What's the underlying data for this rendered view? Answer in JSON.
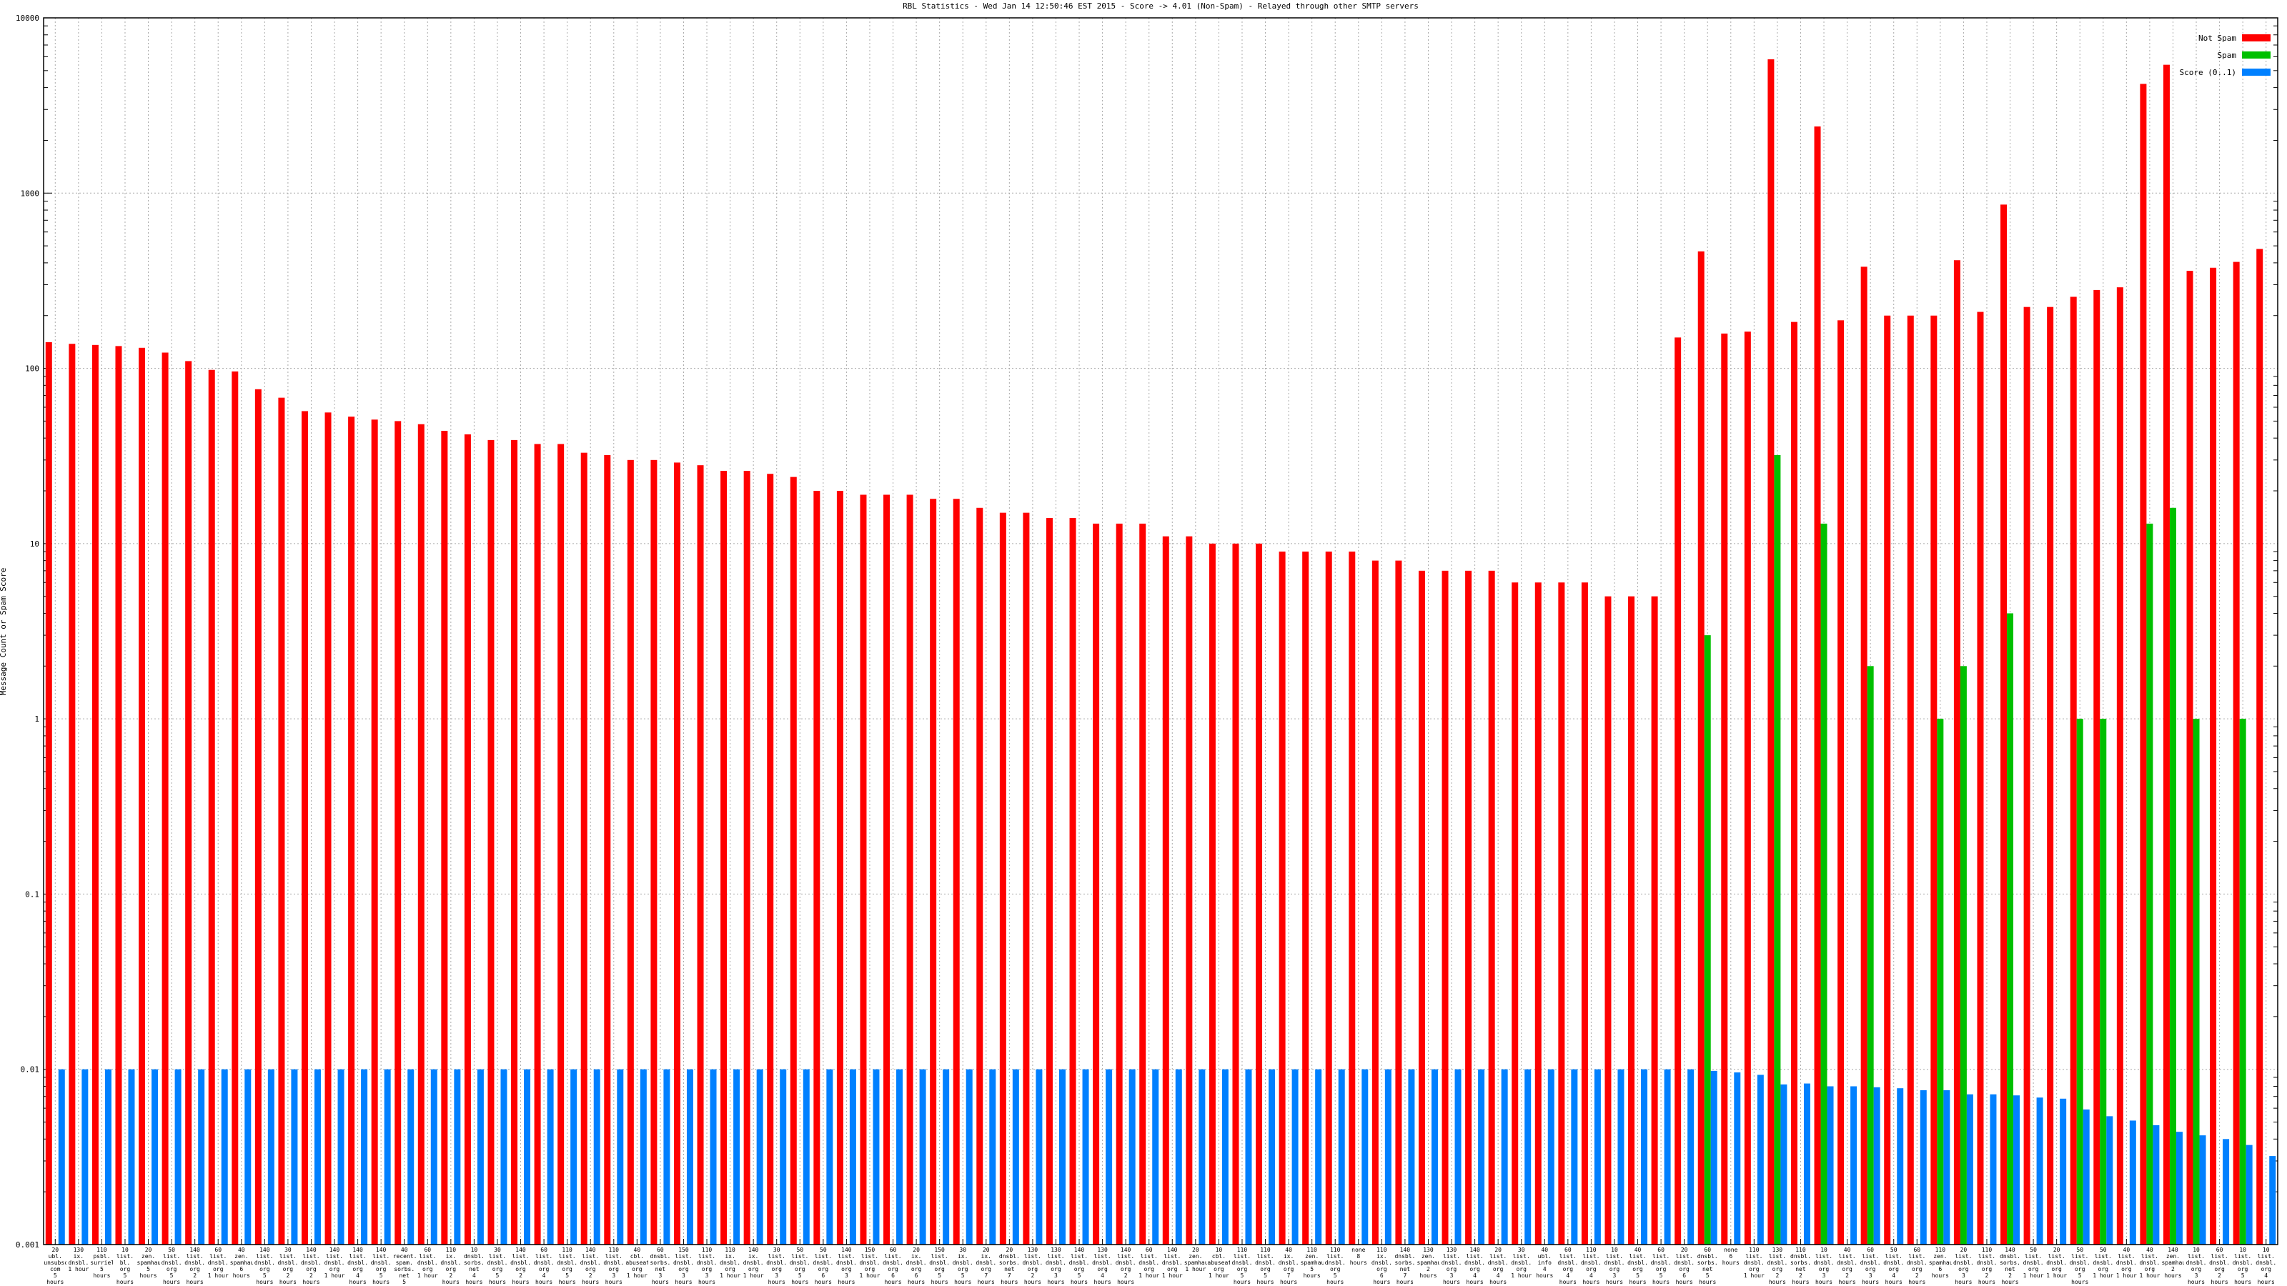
{
  "chart_data": {
    "type": "bar",
    "log_scale": true,
    "grid": true,
    "legend_position": "upper right",
    "title": "RBL Statistics - Wed Jan 14 12:50:46 EST 2015 - Score -> 4.01 (Non-Spam) - Relayed through other SMTP servers",
    "y_label": "Message Count or Spam Score",
    "ylim": [
      0.001,
      10000
    ],
    "yticks": [
      0.001,
      0.01,
      0.1,
      1,
      10,
      100,
      1000,
      10000
    ],
    "categories": [
      "20\nubl.\nunsubscore.\ncom\n5 hours",
      "130\nix.\ndnsbl.\n1 hour",
      "110\npsbl.\nsurriel.\n5 hours",
      "10\nlist.\nbl.\norg\n5 hours",
      "20\nzen.\nspamhaus.\n5 hours",
      "50\nlist.\ndnsbl.\norg\n5 hours",
      "140\nlist.\ndnsbl.\norg\n2 hours",
      "60\nlist.\ndnsbl.\norg\n1 hour",
      "40\nzen.\nspamhaus.\n6 hours",
      "140\nlist.\ndnsbl.\norg\n5 hours",
      "30\nlist.\ndnsbl.\norg\n2 hours",
      "140\nlist.\ndnsbl.\norg\n2 hours",
      "140\nlist.\ndnsbl.\norg\n1 hour",
      "140\nlist.\ndnsbl.\norg\n4 hours",
      "140\nlist.\ndnsbl.\norg\n5 hours",
      "40\nrecent.\nspam.\nsorbs.\nnet\n5 hours",
      "60\nlist.\ndnsbl.\norg\n1 hour",
      "110\nix.\ndnsbl.\norg\n2 hours",
      "10\ndnsbl.\nsorbs.\nnet\n4 hours",
      "30\nlist.\ndnsbl.\norg\n5 hours",
      "140\nlist.\ndnsbl.\norg\n2 hours",
      "60\nlist.\ndnsbl.\norg\n4 hours",
      "110\nlist.\ndnsbl.\norg\n5 hours",
      "140\nlist.\ndnsbl.\norg\n2 hours",
      "110\nlist.\ndnsbl.\norg\n3 hours",
      "40\ncbl.\nabuseat.\norg\n1 hour",
      "60\ndnsbl.\nsorbs.\nnet\n3 hours",
      "150\nlist.\ndnsbl.\norg\n3 hours",
      "110\nlist.\ndnsbl.\norg\n3 hours",
      "110\nix.\ndnsbl.\norg\n1 hour",
      "140\nix.\ndnsbl.\norg\n1 hour",
      "30\nlist.\ndnsbl.\norg\n3 hours",
      "50\nlist.\ndnsbl.\norg\n5 hours",
      "50\nlist.\ndnsbl.\norg\n6 hours",
      "140\nlist.\ndnsbl.\norg\n3 hours",
      "150\nlist.\ndnsbl.\norg\n1 hour",
      "60\nlist.\ndnsbl.\norg\n6 hours",
      "20\nix.\ndnsbl.\norg\n6 hours",
      "150\nlist.\ndnsbl.\norg\n5 hours",
      "30\nix.\ndnsbl.\norg\n5 hours",
      "20\nix.\ndnsbl.\norg\n7 hours",
      "20\ndnsbl.\nsorbs.\nnet\n7 hours",
      "130\nlist.\ndnsbl.\norg\n2 hours",
      "130\nlist.\ndnsbl.\norg\n3 hours",
      "140\nlist.\ndnsbl.\norg\n5 hours",
      "130\nlist.\ndnsbl.\norg\n4 hours",
      "140\nlist.\ndnsbl.\norg\n2 hours",
      "60\nlist.\ndnsbl.\norg\n1 hour",
      "140\nlist.\ndnsbl.\norg\n1 hour",
      "20\nzen.\nspamhaus.\n1 hour",
      "10\ncbl.\nabuseat.\norg\n1 hour",
      "110\nlist.\ndnsbl.\norg\n5 hours",
      "110\nlist.\ndnsbl.\norg\n5 hours",
      "40\nix.\ndnsbl.\norg\n7 hours",
      "110\nzen.\nspamhaus.\n5 hours",
      "110\nlist.\ndnsbl.\norg\n5 hours",
      "none\n8 hours",
      "110\nix.\ndnsbl.\norg\n6 hours",
      "140\ndnsbl.\nsorbs.\nnet\n7 hours",
      "130\nzen.\nspamhaus.\n2 hours",
      "130\nlist.\ndnsbl.\norg\n3 hours",
      "140\nlist.\ndnsbl.\norg\n4 hours",
      "20\nlist.\ndnsbl.\norg\n4 hours",
      "30\nlist.\ndnsbl.\norg\n1 hour",
      "40\nubl.\ninfo\n4 hours",
      "60\nlist.\ndnsbl.\norg\n4 hours",
      "110\nlist.\ndnsbl.\norg\n4 hours",
      "10\nlist.\ndnsbl.\norg\n3 hours",
      "40\nlist.\ndnsbl.\norg\n5 hours",
      "60\nlist.\ndnsbl.\norg\n5 hours",
      "20\nlist.\ndnsbl.\norg\n6 hours",
      "60\ndnsbl.\nsorbs.\nnet\n5 hours",
      "none\n6 hours",
      "110\nlist.\ndnsbl.\norg\n1 hour",
      "130\nlist.\ndnsbl.\norg\n2 hours",
      "110\ndnsbl.\nsorbs.\nnet\n2 hours",
      "10\nlist.\ndnsbl.\norg\n3 hours",
      "40\nlist.\ndnsbl.\norg\n2 hours",
      "60\nlist.\ndnsbl.\norg\n3 hours",
      "50\nlist.\ndnsbl.\norg\n4 hours",
      "60\nlist.\ndnsbl.\norg\n2 hours",
      "110\nzen.\nspamhaus.\n6 hours",
      "20\nlist.\ndnsbl.\norg\n3 hours",
      "110\nlist.\ndnsbl.\norg\n2 hours",
      "140\ndnsbl.\nsorbs.\nnet\n2 hours",
      "50\nlist.\ndnsbl.\norg\n1 hour",
      "20\nlist.\ndnsbl.\norg\n1 hour",
      "50\nlist.\ndnsbl.\norg\n5 hours",
      "50\nlist.\ndnsbl.\norg\n1 hour",
      "40\nlist.\ndnsbl.\norg\n1 hour",
      "40\nlist.\ndnsbl.\norg\n1 hour",
      "140\nzen.\nspamhaus.\n2 hours",
      "10\nlist.\ndnsbl.\norg\n3 hours",
      "60\nlist.\ndnsbl.\norg\n2 hours",
      "10\nlist.\ndnsbl.\norg\n5 hours",
      "10\nlist.\ndnsbl.\norg\n4 hours"
    ],
    "series": [
      {
        "name": "Not Spam",
        "color": "#ff0000",
        "values": [
          141,
          138,
          136,
          134,
          131,
          123,
          110,
          98,
          96,
          76,
          68,
          57,
          56,
          53,
          51,
          50,
          48,
          44,
          42,
          39,
          39,
          37,
          37,
          33,
          32,
          30,
          30,
          29,
          28,
          26,
          26,
          25,
          24,
          20,
          20,
          19,
          19,
          19,
          18,
          18,
          16,
          15,
          15,
          14,
          14,
          13,
          13,
          13,
          11,
          11,
          10,
          10,
          10,
          9,
          9,
          9,
          9,
          8,
          8,
          7,
          7,
          7,
          7,
          6,
          6,
          6,
          6,
          5,
          5,
          5,
          150,
          465,
          158,
          162,
          5800,
          184,
          2400,
          188,
          380,
          200,
          200,
          200,
          414,
          210,
          860,
          224,
          224,
          256,
          280,
          290,
          4200,
          5400,
          360,
          375,
          405,
          480
        ]
      },
      {
        "name": "Spam",
        "color": "#00c000",
        "values": [
          null,
          null,
          null,
          null,
          null,
          null,
          null,
          null,
          null,
          null,
          null,
          null,
          null,
          null,
          null,
          null,
          null,
          null,
          null,
          null,
          null,
          null,
          null,
          null,
          null,
          null,
          null,
          null,
          null,
          null,
          null,
          null,
          null,
          null,
          null,
          null,
          null,
          null,
          null,
          null,
          null,
          null,
          null,
          null,
          null,
          null,
          null,
          null,
          null,
          null,
          null,
          null,
          null,
          null,
          null,
          null,
          null,
          null,
          null,
          null,
          null,
          null,
          null,
          null,
          null,
          null,
          null,
          null,
          null,
          null,
          null,
          3,
          null,
          null,
          32,
          null,
          13,
          null,
          2,
          null,
          null,
          1,
          2,
          null,
          4,
          null,
          null,
          1,
          1,
          null,
          13,
          16,
          1,
          null,
          1,
          null
        ]
      },
      {
        "name": "Score (0..1)",
        "color": "#0080ff",
        "values": [
          0.01,
          0.01,
          0.01,
          0.01,
          0.01,
          0.01,
          0.01,
          0.01,
          0.01,
          0.01,
          0.01,
          0.01,
          0.01,
          0.01,
          0.01,
          0.01,
          0.01,
          0.01,
          0.01,
          0.01,
          0.01,
          0.01,
          0.01,
          0.01,
          0.01,
          0.01,
          0.01,
          0.01,
          0.01,
          0.01,
          0.01,
          0.01,
          0.01,
          0.01,
          0.01,
          0.01,
          0.01,
          0.01,
          0.01,
          0.01,
          0.01,
          0.01,
          0.01,
          0.01,
          0.01,
          0.01,
          0.01,
          0.01,
          0.01,
          0.01,
          0.01,
          0.01,
          0.01,
          0.01,
          0.01,
          0.01,
          0.01,
          0.01,
          0.01,
          0.01,
          0.01,
          0.01,
          0.01,
          0.01,
          0.01,
          0.01,
          0.01,
          0.01,
          0.01,
          0.01,
          0.01,
          0.0098,
          0.0096,
          0.0093,
          0.0082,
          0.0083,
          0.008,
          0.008,
          0.0079,
          0.0078,
          0.0076,
          0.0076,
          0.0072,
          0.0072,
          0.0071,
          0.0069,
          0.0068,
          0.0059,
          0.0054,
          0.0051,
          0.0048,
          0.0044,
          0.0042,
          0.004,
          0.0037,
          0.0032
        ]
      }
    ]
  }
}
